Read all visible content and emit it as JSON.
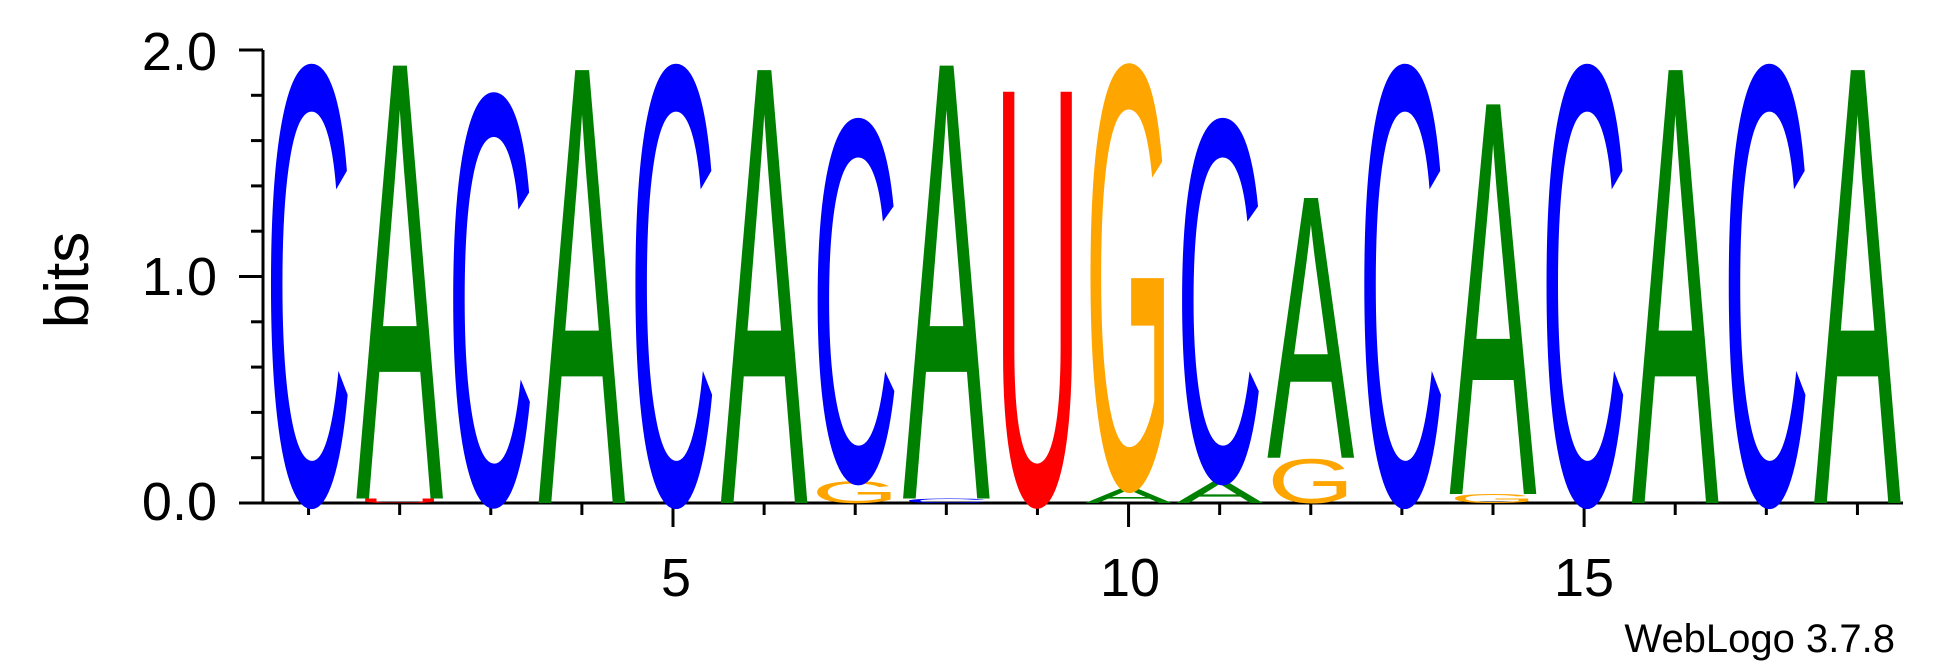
{
  "chart_data": {
    "type": "sequence-logo",
    "ylabel": "bits",
    "ylim": [
      0,
      2.0
    ],
    "y_ticks": [
      "0.0",
      "1.0",
      "2.0"
    ],
    "x_ticks": [
      "5",
      "10",
      "15"
    ],
    "x_tick_values": [
      5,
      10,
      15
    ],
    "positions": 18,
    "grid": false,
    "footer": "WebLogo 3.7.8",
    "colors": {
      "A": "#008000",
      "C": "#0000ff",
      "G": "#ffa500",
      "U": "#ff0000"
    },
    "stacks": [
      [
        {
          "letter": "C",
          "bits": 2.0
        }
      ],
      [
        {
          "letter": "U",
          "bits": 0.02
        },
        {
          "letter": "A",
          "bits": 2.0
        }
      ],
      [
        {
          "letter": "C",
          "bits": 1.87
        }
      ],
      [
        {
          "letter": "A",
          "bits": 2.0
        }
      ],
      [
        {
          "letter": "C",
          "bits": 2.0
        }
      ],
      [
        {
          "letter": "A",
          "bits": 2.0
        }
      ],
      [
        {
          "letter": "G",
          "bits": 0.1
        },
        {
          "letter": "C",
          "bits": 1.65
        }
      ],
      [
        {
          "letter": "C",
          "bits": 0.02
        },
        {
          "letter": "A",
          "bits": 2.0
        }
      ],
      [
        {
          "letter": "U",
          "bits": 1.9
        }
      ],
      [
        {
          "letter": "A",
          "bits": 0.07
        },
        {
          "letter": "G",
          "bits": 1.93
        }
      ],
      [
        {
          "letter": "A",
          "bits": 0.1
        },
        {
          "letter": "C",
          "bits": 1.65
        }
      ],
      [
        {
          "letter": "G",
          "bits": 0.2
        },
        {
          "letter": "A",
          "bits": 1.2
        }
      ],
      [
        {
          "letter": "C",
          "bits": 2.0
        }
      ],
      [
        {
          "letter": "G",
          "bits": 0.04
        },
        {
          "letter": "A",
          "bits": 1.8
        }
      ],
      [
        {
          "letter": "C",
          "bits": 2.0
        }
      ],
      [
        {
          "letter": "A",
          "bits": 2.0
        }
      ],
      [
        {
          "letter": "C",
          "bits": 2.0
        }
      ],
      [
        {
          "letter": "A",
          "bits": 2.0
        }
      ]
    ]
  }
}
